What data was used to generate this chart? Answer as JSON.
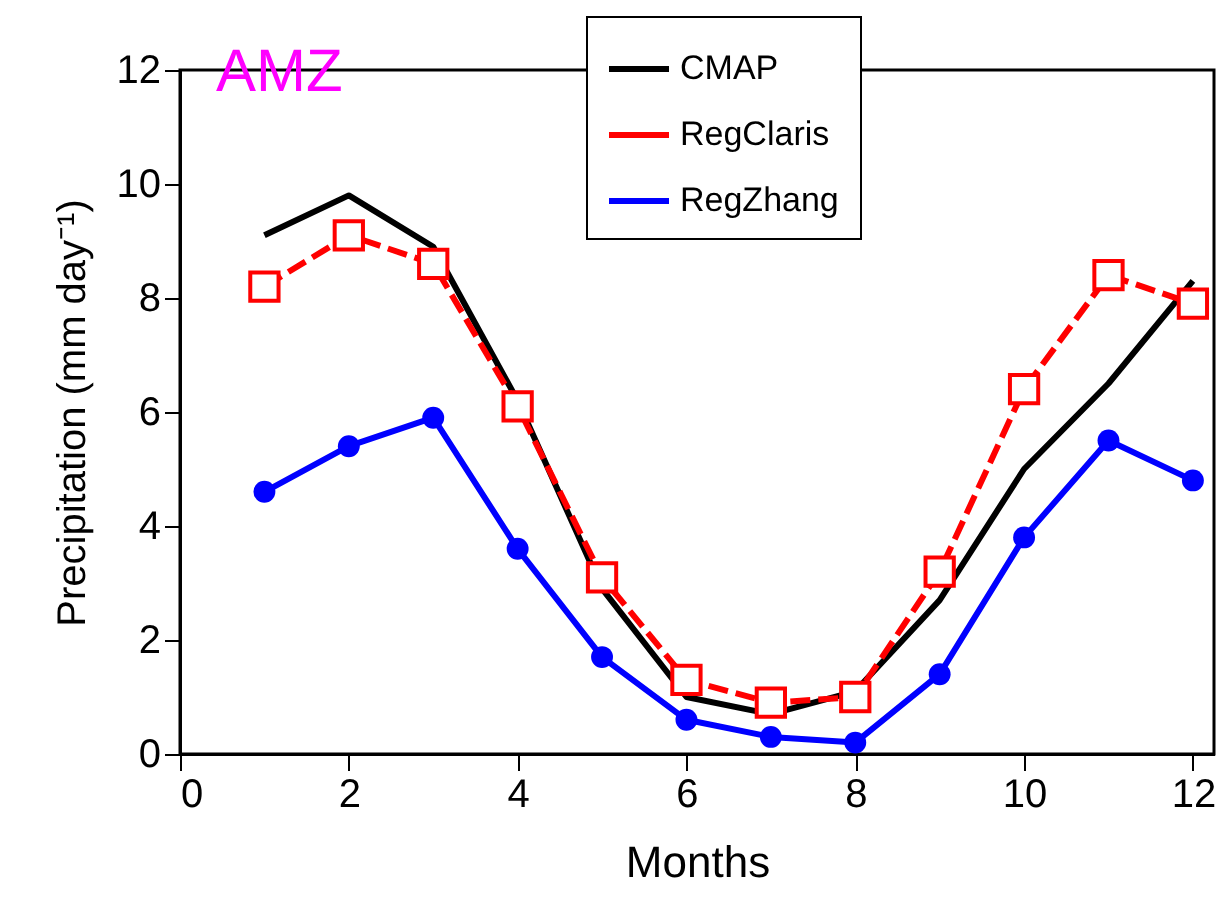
{
  "chart_data": {
    "type": "line",
    "title": "AMZ",
    "xlabel": "Months",
    "ylabel": "Precipitation (mm day⁻¹)",
    "x": [
      1,
      2,
      3,
      4,
      5,
      6,
      7,
      8,
      9,
      10,
      11,
      12
    ],
    "series": [
      {
        "name": "CMAP",
        "color": "#000000",
        "marker": "none",
        "values": [
          9.1,
          9.8,
          8.9,
          6.2,
          2.9,
          1.0,
          0.7,
          1.1,
          2.7,
          5.0,
          6.5,
          8.3
        ]
      },
      {
        "name": "RegClaris",
        "color": "#ff0000",
        "marker": "square",
        "line_style": "dashed",
        "values": [
          8.2,
          9.1,
          8.6,
          6.1,
          3.1,
          1.3,
          0.9,
          1.0,
          3.2,
          6.4,
          8.4,
          7.9
        ]
      },
      {
        "name": "RegZhang",
        "color": "#0000ff",
        "marker": "circle",
        "values": [
          4.6,
          5.4,
          5.9,
          3.6,
          1.7,
          0.6,
          0.3,
          0.2,
          1.4,
          3.8,
          5.5,
          4.8
        ]
      }
    ],
    "xlim": [
      0,
      12.25
    ],
    "xticks": [
      0,
      2,
      4,
      6,
      8,
      10,
      12
    ],
    "ylim": [
      0,
      12
    ],
    "yticks": [
      0,
      2,
      4,
      6,
      8,
      10,
      12
    ],
    "grid": false,
    "legend": "top right"
  }
}
